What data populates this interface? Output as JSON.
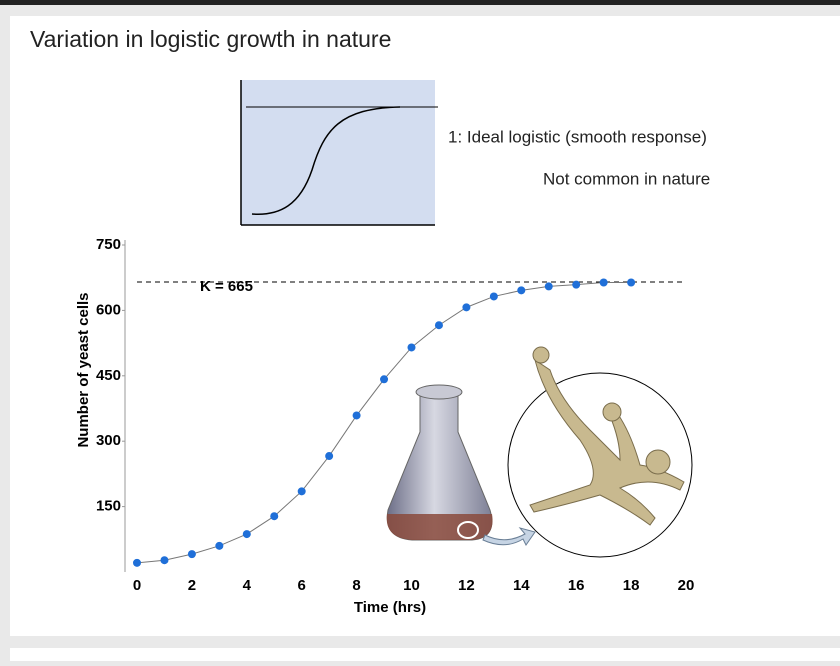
{
  "slide": {
    "title": "Variation in logistic growth in nature",
    "notes": [
      "1:  Ideal logistic (smooth response)",
      "Not common in nature"
    ]
  },
  "chart_data": {
    "type": "line",
    "x_label": "Time (hrs)",
    "y_label": "Number of yeast cells",
    "x": [
      0,
      1,
      2,
      3,
      4,
      5,
      6,
      7,
      8,
      9,
      10,
      11,
      12,
      13,
      14,
      15,
      16,
      17,
      18
    ],
    "values": [
      21,
      27,
      41,
      60,
      87,
      128,
      185,
      266,
      359,
      442,
      515,
      566,
      607,
      632,
      646,
      655,
      659,
      664,
      664
    ],
    "color": "#1f6fd8",
    "xlim": [
      0,
      20
    ],
    "xticks": [
      0,
      2,
      4,
      6,
      8,
      10,
      12,
      14,
      16,
      18,
      20
    ],
    "ylim": [
      0,
      750
    ],
    "yticks": [
      150,
      300,
      450,
      600,
      750
    ],
    "annotation": {
      "text": "K = 665",
      "value": 665
    }
  }
}
